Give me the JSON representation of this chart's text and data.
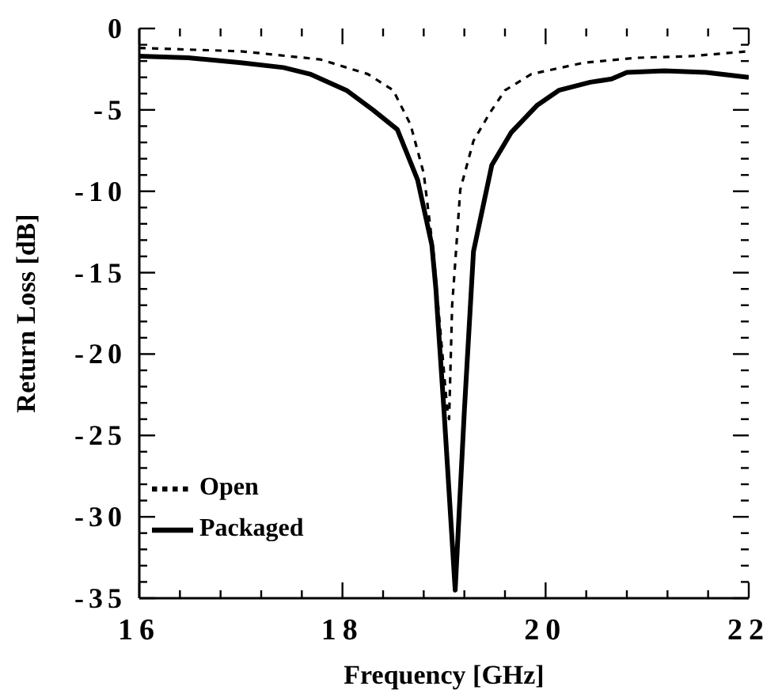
{
  "chart_data": {
    "type": "line",
    "xlabel": "Frequency  [GHz]",
    "ylabel": "Return  Loss  [dB]",
    "xlim": [
      16,
      22
    ],
    "ylim": [
      -35,
      0
    ],
    "xticks": [
      16,
      {
        "value": 16.4,
        "label": null
      },
      {
        "value": 16.8,
        "label": null
      },
      {
        "value": 17.2,
        "label": null
      },
      {
        "value": 17.6,
        "label": null
      },
      18,
      {
        "value": 18.4,
        "label": null
      },
      {
        "value": 18.8,
        "label": null
      },
      {
        "value": 19.2,
        "label": null
      },
      {
        "value": 19.6,
        "label": null
      },
      20,
      {
        "value": 20.4,
        "label": null
      },
      {
        "value": 20.8,
        "label": null
      },
      {
        "value": 21.2,
        "label": null
      },
      {
        "value": 21.6,
        "label": null
      },
      22
    ],
    "yticks": [
      -35,
      {
        "value": -34,
        "label": null
      },
      {
        "value": -33,
        "label": null
      },
      {
        "value": -32,
        "label": null
      },
      {
        "value": -31,
        "label": null
      },
      -30,
      {
        "value": -29,
        "label": null
      },
      {
        "value": -28,
        "label": null
      },
      {
        "value": -27,
        "label": null
      },
      {
        "value": -26,
        "label": null
      },
      -25,
      {
        "value": -24,
        "label": null
      },
      {
        "value": -23,
        "label": null
      },
      {
        "value": -22,
        "label": null
      },
      {
        "value": -21,
        "label": null
      },
      -20,
      {
        "value": -19,
        "label": null
      },
      {
        "value": -18,
        "label": null
      },
      {
        "value": -17,
        "label": null
      },
      {
        "value": -16,
        "label": null
      },
      -15,
      {
        "value": -14,
        "label": null
      },
      {
        "value": -13,
        "label": null
      },
      {
        "value": -12,
        "label": null
      },
      {
        "value": -11,
        "label": null
      },
      -10,
      {
        "value": -9,
        "label": null
      },
      {
        "value": -8,
        "label": null
      },
      {
        "value": -7,
        "label": null
      },
      {
        "value": -6,
        "label": null
      },
      -5,
      {
        "value": -4,
        "label": null
      },
      {
        "value": -3,
        "label": null
      },
      {
        "value": -2,
        "label": null
      },
      {
        "value": -1,
        "label": null
      },
      0
    ],
    "legend": "bottom left",
    "marker": "none",
    "series": [
      {
        "name": "Open",
        "color": "#000000",
        "line_style": "dashed",
        "x": [
          16,
          17,
          17.78,
          18.25,
          18.5,
          18.67,
          18.8,
          18.9,
          19.03,
          19.05,
          19.08,
          19.11,
          19.16,
          19.29,
          19.45,
          19.6,
          19.86,
          20.38,
          20.9,
          21.43,
          22
        ],
        "values": [
          -1.2,
          -1.4,
          -1.9,
          -2.8,
          -3.8,
          -5.9,
          -8.9,
          -14,
          -23.3,
          -24,
          -17,
          -14.4,
          -9.9,
          -6.9,
          -5.2,
          -3.8,
          -2.8,
          -2.1,
          -1.8,
          -1.7,
          -1.4
        ]
      },
      {
        "name": "Packaged",
        "color": "#000000",
        "line_style": "solid",
        "x": [
          16,
          16.48,
          17,
          17.42,
          17.68,
          18.04,
          18.3,
          18.54,
          18.74,
          18.88,
          18.92,
          18.93,
          19.0,
          19.11,
          19.2,
          19.29,
          19.47,
          19.66,
          19.92,
          20.13,
          20.44,
          20.65,
          20.8,
          21.17,
          21.58,
          22
        ],
        "values": [
          -1.7,
          -1.8,
          -2.1,
          -2.4,
          -2.8,
          -3.8,
          -5.0,
          -6.2,
          -9.3,
          -13.3,
          -16,
          -17,
          -23.5,
          -34.5,
          -23.5,
          -13.7,
          -8.4,
          -6.4,
          -4.7,
          -3.8,
          -3.3,
          -3.1,
          -2.7,
          -2.6,
          -2.7,
          -3.0
        ]
      }
    ]
  }
}
